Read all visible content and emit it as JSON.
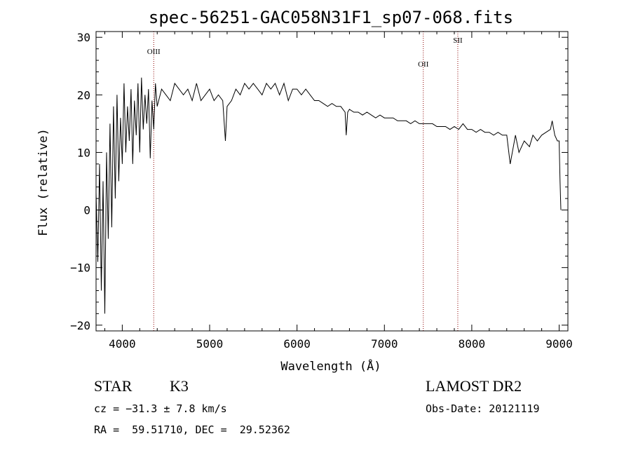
{
  "chart_data": {
    "type": "line",
    "title": "spec-56251-GAC058N31F1_sp07-068.fits",
    "xlabel": "Wavelength (Å)",
    "ylabel": "Flux (relative)",
    "xlim": [
      3700,
      9100
    ],
    "ylim": [
      -21,
      31
    ],
    "xticks": [
      4000,
      5000,
      6000,
      7000,
      8000,
      9000
    ],
    "yticks": [
      -20,
      -10,
      0,
      10,
      20,
      30
    ],
    "grid": false,
    "series": [
      {
        "x": [
          3700,
          3720,
          3740,
          3760,
          3780,
          3800,
          3820,
          3840,
          3860,
          3880,
          3900,
          3920,
          3940,
          3960,
          3980,
          4000,
          4020,
          4040,
          4060,
          4080,
          4100,
          4120,
          4140,
          4160,
          4180,
          4200,
          4220,
          4240,
          4260,
          4280,
          4300,
          4320,
          4340,
          4360,
          4380,
          4400,
          4450,
          4500,
          4550,
          4600,
          4650,
          4700,
          4750,
          4800,
          4850,
          4900,
          4950,
          5000,
          5050,
          5100,
          5150,
          5180,
          5200,
          5250,
          5300,
          5350,
          5400,
          5450,
          5500,
          5550,
          5600,
          5650,
          5700,
          5750,
          5800,
          5850,
          5900,
          5950,
          6000,
          6050,
          6100,
          6150,
          6200,
          6250,
          6300,
          6350,
          6400,
          6450,
          6500,
          6550,
          6563,
          6580,
          6600,
          6650,
          6700,
          6750,
          6800,
          6850,
          6900,
          6950,
          7000,
          7050,
          7100,
          7150,
          7200,
          7250,
          7300,
          7350,
          7400,
          7450,
          7500,
          7550,
          7600,
          7650,
          7700,
          7750,
          7800,
          7850,
          7900,
          7950,
          8000,
          8050,
          8100,
          8150,
          8200,
          8250,
          8300,
          8350,
          8400,
          8440,
          8500,
          8540,
          8600,
          8660,
          8700,
          8750,
          8800,
          8850,
          8900,
          8920,
          8950,
          8980,
          9000,
          9010,
          9020
        ],
        "y": [
          3,
          -9,
          8,
          -14,
          5,
          -18,
          10,
          -5,
          15,
          -3,
          18,
          2,
          20,
          5,
          16,
          8,
          22,
          10,
          18,
          12,
          21,
          8,
          19,
          13,
          22,
          10,
          23,
          14,
          20,
          15,
          21,
          9,
          19,
          14,
          22,
          18,
          21,
          20,
          19,
          22,
          21,
          20,
          21,
          19,
          22,
          19,
          20,
          21,
          19,
          20,
          19,
          12,
          18,
          19,
          21,
          20,
          22,
          21,
          22,
          21,
          20,
          22,
          21,
          22,
          20,
          22,
          19,
          21,
          21,
          20,
          21,
          20,
          19,
          19,
          18.5,
          18,
          18.5,
          18,
          18,
          17,
          13,
          17,
          17.5,
          17,
          17,
          16.5,
          17,
          16.5,
          16,
          16.5,
          16,
          16,
          16,
          15.5,
          15.5,
          15.5,
          15,
          15.5,
          15,
          15,
          15,
          15,
          14.5,
          14.5,
          14.5,
          14,
          14.5,
          14,
          15,
          14,
          14,
          13.5,
          14,
          13.5,
          13.5,
          13,
          13.5,
          13,
          13,
          8,
          13,
          10,
          12,
          11,
          13,
          12,
          13,
          13.5,
          14,
          15.5,
          13,
          12,
          12,
          5,
          0
        ]
      }
    ],
    "vlines": [
      {
        "x": 4360,
        "label": "OIII"
      },
      {
        "x": 7445,
        "label": "OII"
      },
      {
        "x": 7840,
        "label": "SII"
      }
    ],
    "colors": {
      "spectrum": "#000000",
      "vline": "#8b0000"
    }
  },
  "info": {
    "object_class": "STAR",
    "subclass": "K3",
    "survey": "LAMOST DR2",
    "velocity": "cz = −31.3 ± 7.8 km/s",
    "obs_date": "Obs-Date: 20121119",
    "coordinates": "RA =  59.51710, DEC =  29.52362"
  }
}
